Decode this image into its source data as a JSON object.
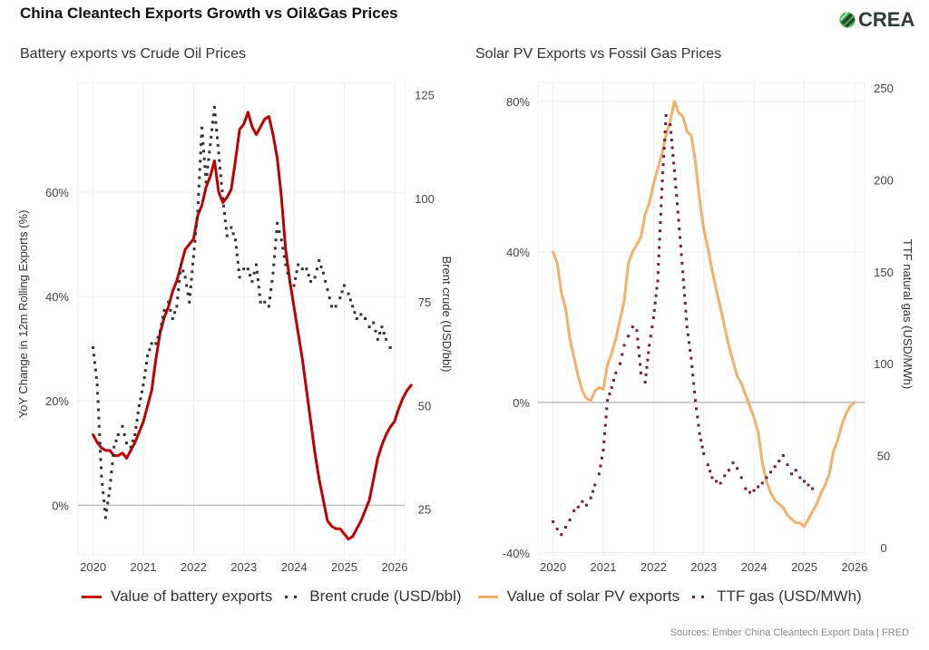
{
  "header": {
    "title": "China Cleantech Exports Growth vs Oil&Gas Prices",
    "logo_text": "CREA",
    "logo_icon": "crea-leaf-icon"
  },
  "legend": {
    "battery": "Value of battery exports",
    "brent": "Brent crude (USD/bbl)",
    "solar": "Value of solar PV exports",
    "ttf": "TTF gas (USD/MWh)"
  },
  "source": "Sources: Ember China Cleantech Export Data | FRED",
  "colors": {
    "battery": "#c00000",
    "brent": "#333333",
    "solar": "#f2b06b",
    "ttf": "#6b1f46",
    "grid": "#ececec",
    "zero": "#b0b0b0"
  },
  "chart_data": [
    {
      "type": "line",
      "title": "Battery exports vs Crude Oil Prices",
      "xlabel": "",
      "ylabel": "YoY Change in 12m Rolling Exports (%)",
      "y2label": "Brent crude (USD/bbl)",
      "xlim": [
        2019.7,
        2026.2
      ],
      "ylim": [
        -9.5,
        81
      ],
      "y2lim": [
        14,
        128
      ],
      "xticks": [
        2020,
        2021,
        2022,
        2023,
        2024,
        2025,
        2026
      ],
      "yticks": [
        0,
        20,
        40,
        60
      ],
      "ytick_labels": [
        "0%",
        "20%",
        "40%",
        "60%"
      ],
      "y2ticks": [
        25,
        50,
        75,
        100,
        125
      ],
      "grid": true,
      "legend_position": "bottom",
      "series": [
        {
          "name": "Value of battery exports",
          "axis": "left",
          "style": "solid",
          "x_start": 2020.0,
          "x_step": 0.0833,
          "values": [
            13.5,
            12,
            11,
            10.5,
            10.5,
            9.5,
            9.5,
            10,
            9,
            10.5,
            12,
            14,
            16,
            19,
            22,
            28,
            33,
            36,
            38,
            41,
            43,
            46,
            49,
            50,
            51,
            55.5,
            57.5,
            61,
            63,
            66,
            60,
            58,
            59,
            60.5,
            66,
            72,
            73,
            75.3,
            72.5,
            71,
            72.5,
            74,
            74.5,
            71,
            66.5,
            59,
            49,
            43,
            38,
            33,
            28,
            22,
            16,
            10,
            5,
            1,
            -3,
            -4,
            -4.5,
            -4.5,
            -5.5,
            -6.5,
            -6,
            -4.5,
            -3,
            -1,
            1,
            5,
            9,
            11.5,
            13.5,
            15,
            16,
            18.5,
            20.5,
            22,
            23
          ]
        },
        {
          "name": "Brent crude (USD/bbl)",
          "axis": "right",
          "style": "dotted",
          "x_start": 2020.0,
          "x_step": 0.0833,
          "values": [
            64,
            55,
            33,
            23,
            30,
            40,
            43,
            45,
            41,
            40,
            43,
            50,
            55,
            62,
            65,
            65,
            68,
            73,
            75,
            71,
            74,
            84,
            81,
            75,
            86,
            97,
            117,
            104,
            113,
            122,
            111,
            100,
            91,
            93,
            90,
            81,
            83,
            83,
            80,
            84,
            75,
            75,
            74,
            82,
            94,
            90,
            84,
            80,
            79,
            84,
            83,
            83,
            80,
            81,
            85,
            82,
            78,
            74,
            74,
            76,
            79,
            77,
            74,
            71,
            72,
            71,
            69,
            70,
            66,
            69,
            66,
            64
          ]
        }
      ]
    },
    {
      "type": "line",
      "title": "Solar PV Exports vs Fossil Gas Prices",
      "xlabel": "",
      "ylabel": "",
      "y2label": "TTF natural gas (USD/MWh)",
      "xlim": [
        2019.7,
        2026.2
      ],
      "ylim": [
        -40.5,
        85
      ],
      "y2lim": [
        -4,
        253
      ],
      "xticks": [
        2020,
        2021,
        2022,
        2023,
        2024,
        2025,
        2026
      ],
      "yticks": [
        -40,
        0,
        40,
        80
      ],
      "ytick_labels": [
        "-40%",
        "0%",
        "40%",
        "80%"
      ],
      "y2ticks": [
        0,
        50,
        100,
        150,
        200,
        250
      ],
      "grid": true,
      "legend_position": "bottom",
      "series": [
        {
          "name": "Value of solar PV exports",
          "axis": "left",
          "style": "solid",
          "x_start": 2020.0,
          "x_step": 0.0833,
          "values": [
            40,
            37,
            29,
            25,
            17,
            12,
            7,
            3,
            1,
            0.5,
            3,
            4,
            3.5,
            10,
            13,
            17,
            22,
            27,
            37,
            40,
            42,
            44,
            50,
            53,
            58,
            62,
            66,
            71,
            75,
            80,
            77,
            76,
            72,
            71,
            64,
            54,
            46,
            41,
            35,
            30,
            25,
            20,
            15,
            11,
            7,
            5,
            2,
            -1,
            -4,
            -8,
            -16,
            -21,
            -24,
            -26,
            -27,
            -28,
            -30,
            -31,
            -32,
            -32,
            -33,
            -31,
            -29,
            -27,
            -24,
            -22,
            -19,
            -13,
            -10,
            -6,
            -3,
            -1,
            0
          ]
        },
        {
          "name": "TTF gas (USD/MWh)",
          "axis": "right",
          "style": "dotted",
          "x_start": 2020.0,
          "x_step": 0.0833,
          "values": [
            14,
            10,
            7,
            11,
            15,
            20,
            22,
            25,
            23,
            27,
            34,
            40,
            53,
            80,
            87,
            95,
            100,
            110,
            115,
            120,
            118,
            95,
            90,
            110,
            125,
            145,
            195,
            235,
            230,
            205,
            178,
            150,
            120,
            103,
            80,
            62,
            51,
            45,
            38,
            36,
            35,
            39,
            42,
            46,
            43,
            38,
            32,
            30,
            31,
            33,
            35,
            38,
            41,
            44,
            47,
            50,
            45,
            40,
            42,
            38,
            36,
            34,
            32
          ]
        }
      ]
    }
  ],
  "charts_text": {
    "left": {
      "subtitle": "Battery exports vs Crude Oil Prices",
      "ylabel": "YoY Change in 12m Rolling Exports (%)",
      "y2label": "Brent crude (USD/bbl)"
    },
    "right": {
      "subtitle": "Solar PV Exports vs Fossil Gas Prices",
      "y2label": "TTF natural gas (USD/MWh)"
    }
  }
}
